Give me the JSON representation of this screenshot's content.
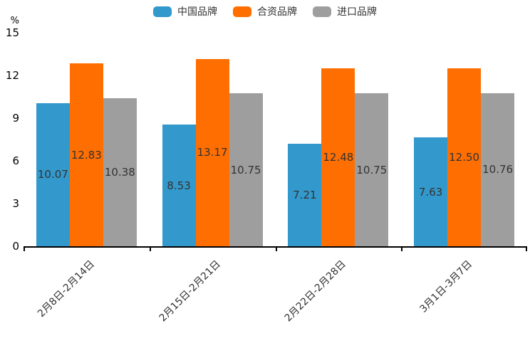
{
  "chart_data": {
    "type": "bar",
    "title": "",
    "unit_label": "%",
    "categories": [
      "2月8日-2月14日",
      "2月15日-2月21日",
      "2月22日-2月28日",
      "3月1日-3月7日"
    ],
    "series": [
      {
        "name": "中国品牌",
        "color": "#3399CC",
        "values": [
          10.07,
          8.53,
          7.21,
          7.63
        ]
      },
      {
        "name": "合资品牌",
        "color": "#FF6E00",
        "values": [
          12.83,
          13.17,
          12.48,
          12.5
        ]
      },
      {
        "name": "进口品牌",
        "color": "#9E9E9E",
        "values": [
          10.38,
          10.75,
          10.75,
          10.76
        ]
      }
    ],
    "ylim": [
      0,
      15
    ],
    "yticks": [
      0,
      3,
      6,
      9,
      12,
      15
    ],
    "legend_position": "top",
    "grid": false,
    "value_labels": true,
    "value_label_decimals": 2,
    "xlabel_rotation": 45,
    "axis_color": "#000000",
    "label_color": "#333333",
    "background_color": "#ffffff"
  }
}
